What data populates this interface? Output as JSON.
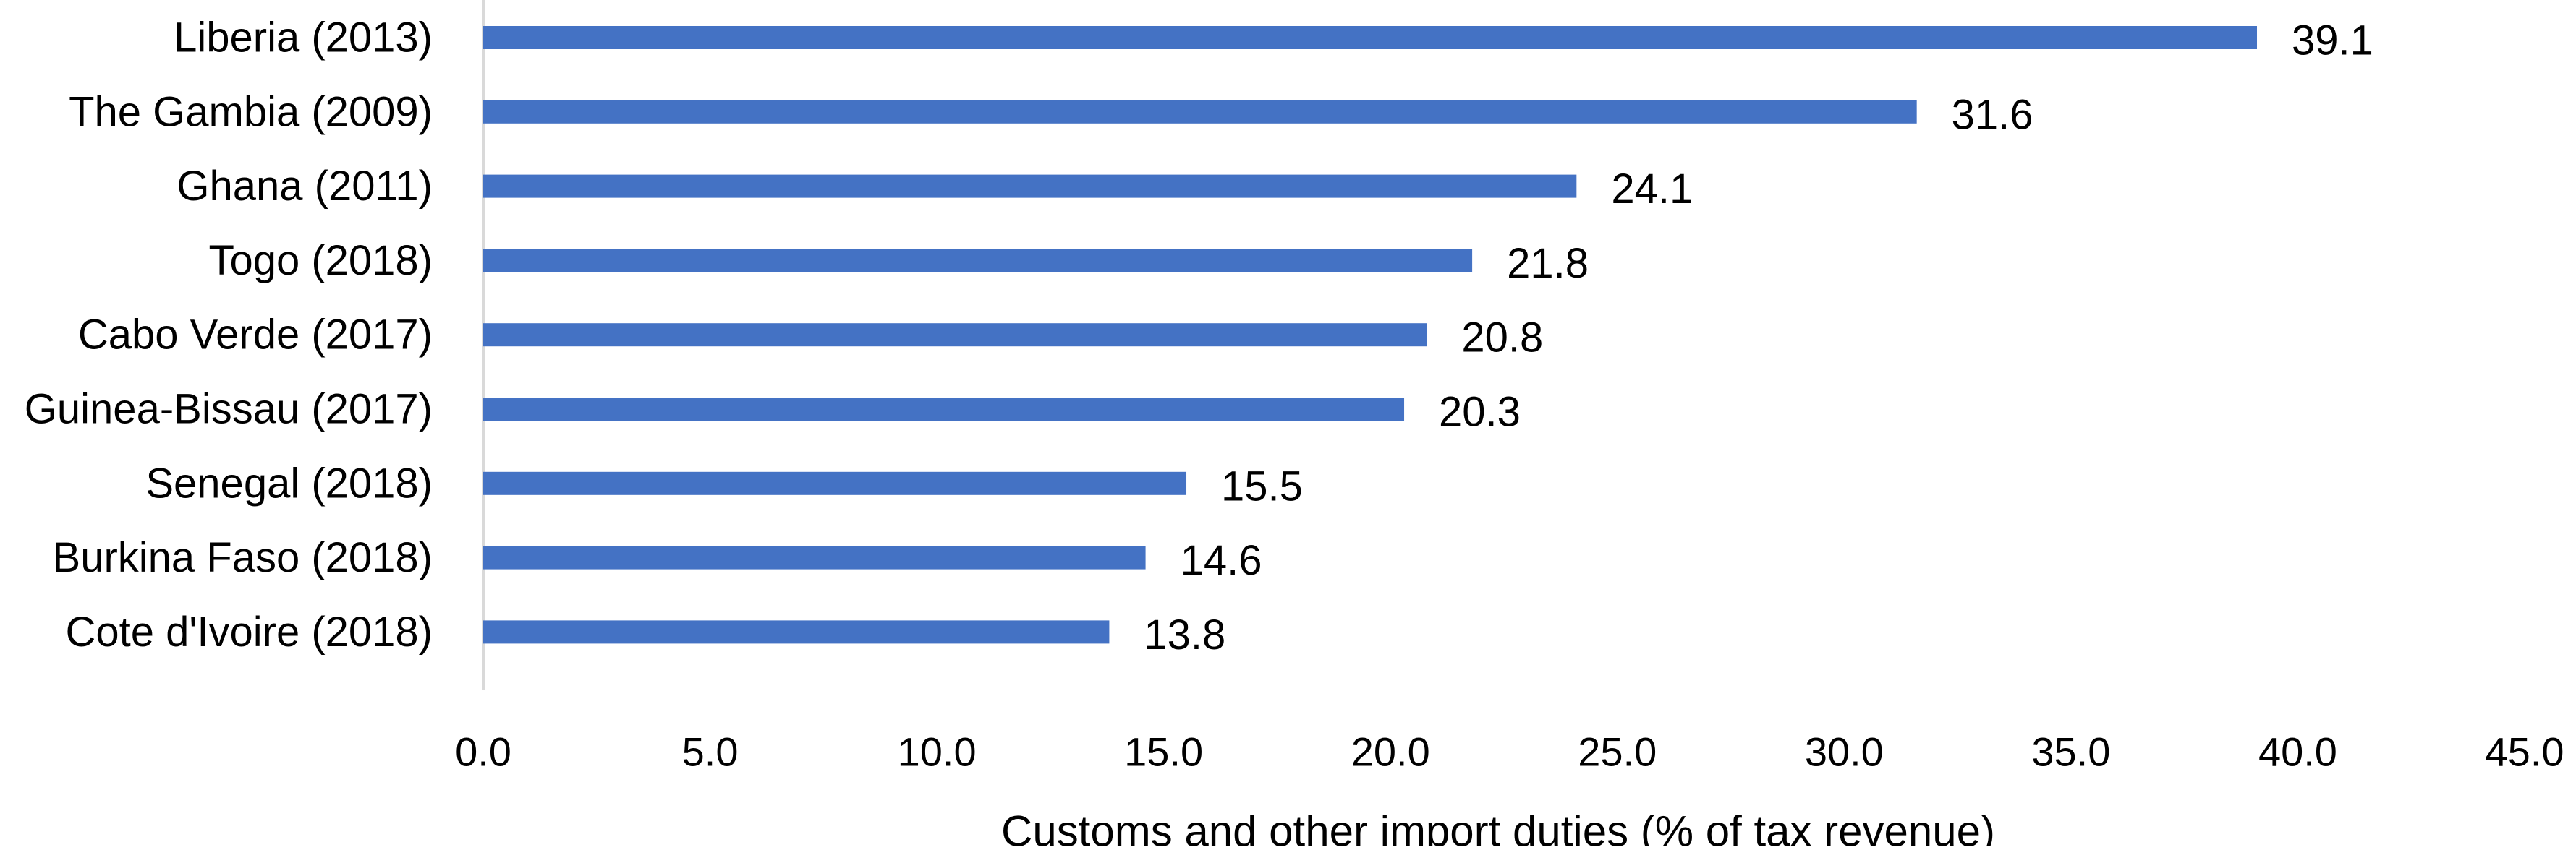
{
  "chart_data": {
    "type": "bar",
    "orientation": "horizontal",
    "categories": [
      "Liberia (2013)",
      "The Gambia (2009)",
      "Ghana (2011)",
      "Togo (2018)",
      "Cabo Verde (2017)",
      "Guinea-Bissau (2017)",
      "Senegal (2018)",
      "Burkina Faso (2018)",
      "Cote d'Ivoire (2018)"
    ],
    "values": [
      39.1,
      31.6,
      24.1,
      21.8,
      20.8,
      20.3,
      15.5,
      14.6,
      13.8
    ],
    "value_labels": [
      "39.1",
      "31.6",
      "24.1",
      "21.8",
      "20.8",
      "20.3",
      "15.5",
      "14.6",
      "13.8"
    ],
    "xlim": [
      0,
      45
    ],
    "x_ticks": [
      0,
      5,
      10,
      15,
      20,
      25,
      30,
      35,
      40,
      45
    ],
    "x_tick_labels": [
      "0.0",
      "5.0",
      "10.0",
      "15.0",
      "20.0",
      "25.0",
      "30.0",
      "35.0",
      "40.0",
      "45.0"
    ],
    "title": "",
    "xlabel": "Customs and other import duties (% of tax revenue)",
    "ylabel": "",
    "grid": false,
    "legend": "none",
    "bar_color": "#4472C4",
    "axis_line_color": "#D9D9D9"
  }
}
